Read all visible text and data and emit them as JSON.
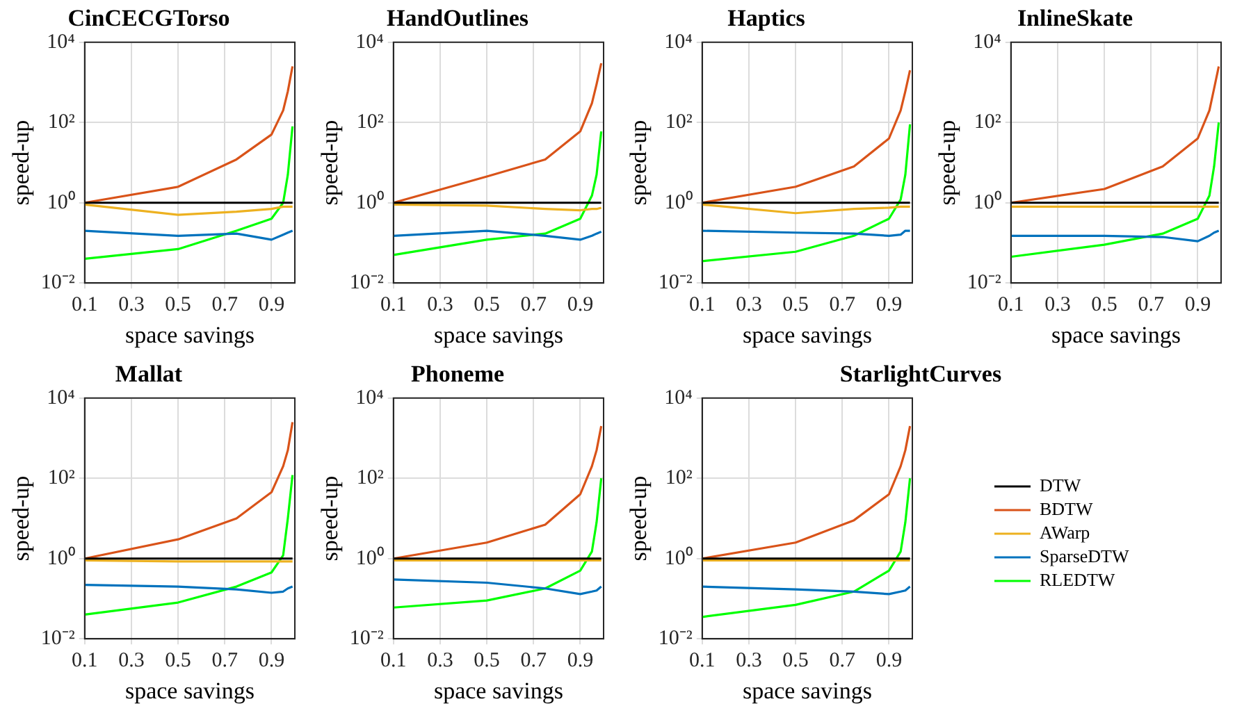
{
  "chart_data": [
    {
      "type": "line",
      "title": "CinCECGTorso",
      "xlabel": "space savings",
      "ylabel": "speed-up",
      "log": true,
      "grid": true,
      "marker": "none",
      "line_style": "solid",
      "x": [
        0.1,
        0.5,
        0.75,
        0.9,
        0.95,
        0.97,
        0.99
      ],
      "xlim": [
        0.1,
        1.0
      ],
      "xticks": [
        0.1,
        0.3,
        0.5,
        0.7,
        0.9
      ],
      "ylim": [
        0.01,
        10000
      ],
      "yticks": [
        {
          "value": 0.01,
          "label": "10⁻²"
        },
        {
          "value": 1,
          "label": "10⁰"
        },
        {
          "value": 100,
          "label": "10²"
        },
        {
          "value": 10000,
          "label": "10⁴"
        }
      ],
      "series": [
        {
          "color": "#000000",
          "values": [
            1,
            1,
            1,
            1,
            1,
            1,
            1
          ]
        },
        {
          "color": "#d95319",
          "values": [
            1,
            2.5,
            12,
            50,
            200,
            600,
            2500
          ]
        },
        {
          "color": "#edb120",
          "values": [
            0.9,
            0.5,
            0.6,
            0.7,
            0.8,
            0.8,
            0.8
          ]
        },
        {
          "color": "#0072bd",
          "values": [
            0.2,
            0.15,
            0.17,
            0.12,
            0.16,
            0.18,
            0.2
          ]
        },
        {
          "color": "#00ff00",
          "values": [
            0.04,
            0.07,
            0.2,
            0.4,
            1,
            5,
            80
          ]
        }
      ]
    },
    {
      "type": "line",
      "title": "HandOutlines",
      "xlabel": "space savings",
      "ylabel": "speed-up",
      "log": true,
      "grid": true,
      "marker": "none",
      "line_style": "solid",
      "x": [
        0.1,
        0.5,
        0.75,
        0.9,
        0.95,
        0.97,
        0.99
      ],
      "xlim": [
        0.1,
        1.0
      ],
      "xticks": [
        0.1,
        0.3,
        0.5,
        0.7,
        0.9
      ],
      "ylim": [
        0.01,
        10000
      ],
      "yticks": [
        {
          "value": 0.01,
          "label": "10⁻²"
        },
        {
          "value": 1,
          "label": "10⁰"
        },
        {
          "value": 100,
          "label": "10²"
        },
        {
          "value": 10000,
          "label": "10⁴"
        }
      ],
      "series": [
        {
          "color": "#000000",
          "values": [
            1,
            1,
            1,
            1,
            1,
            1,
            1
          ]
        },
        {
          "color": "#d95319",
          "values": [
            1,
            4.5,
            12,
            60,
            300,
            900,
            3000
          ]
        },
        {
          "color": "#edb120",
          "values": [
            0.9,
            0.85,
            0.7,
            0.65,
            0.7,
            0.7,
            0.75
          ]
        },
        {
          "color": "#0072bd",
          "values": [
            0.15,
            0.2,
            0.15,
            0.12,
            0.15,
            0.17,
            0.19
          ]
        },
        {
          "color": "#00ff00",
          "values": [
            0.05,
            0.12,
            0.17,
            0.4,
            1.5,
            5,
            60
          ]
        }
      ]
    },
    {
      "type": "line",
      "title": "Haptics",
      "xlabel": "space savings",
      "ylabel": "speed-up",
      "log": true,
      "grid": true,
      "marker": "none",
      "line_style": "solid",
      "x": [
        0.1,
        0.5,
        0.75,
        0.9,
        0.95,
        0.97,
        0.99
      ],
      "xlim": [
        0.1,
        1.0
      ],
      "xticks": [
        0.1,
        0.3,
        0.5,
        0.7,
        0.9
      ],
      "ylim": [
        0.01,
        10000
      ],
      "yticks": [
        {
          "value": 0.01,
          "label": "10⁻²"
        },
        {
          "value": 1,
          "label": "10⁰"
        },
        {
          "value": 100,
          "label": "10²"
        },
        {
          "value": 10000,
          "label": "10⁴"
        }
      ],
      "series": [
        {
          "color": "#000000",
          "values": [
            1,
            1,
            1,
            1,
            1,
            1,
            1
          ]
        },
        {
          "color": "#d95319",
          "values": [
            1,
            2.5,
            8,
            40,
            200,
            600,
            2000
          ]
        },
        {
          "color": "#edb120",
          "values": [
            0.9,
            0.55,
            0.7,
            0.75,
            0.8,
            0.8,
            0.8
          ]
        },
        {
          "color": "#0072bd",
          "values": [
            0.2,
            0.18,
            0.17,
            0.15,
            0.16,
            0.2,
            0.2
          ]
        },
        {
          "color": "#00ff00",
          "values": [
            0.035,
            0.06,
            0.15,
            0.4,
            1.2,
            5,
            90
          ]
        }
      ]
    },
    {
      "type": "line",
      "title": "InlineSkate",
      "xlabel": "space savings",
      "ylabel": "speed-up",
      "log": true,
      "grid": true,
      "marker": "none",
      "line_style": "solid",
      "x": [
        0.1,
        0.5,
        0.75,
        0.9,
        0.95,
        0.97,
        0.99
      ],
      "xlim": [
        0.1,
        1.0
      ],
      "xticks": [
        0.1,
        0.3,
        0.5,
        0.7,
        0.9
      ],
      "ylim": [
        0.01,
        10000
      ],
      "yticks": [
        {
          "value": 0.01,
          "label": "10⁻²"
        },
        {
          "value": 1,
          "label": "10⁰"
        },
        {
          "value": 100,
          "label": "10²"
        },
        {
          "value": 10000,
          "label": "10⁴"
        }
      ],
      "series": [
        {
          "color": "#000000",
          "values": [
            1,
            1,
            1,
            1,
            1,
            1,
            1
          ]
        },
        {
          "color": "#d95319",
          "values": [
            1,
            2.2,
            8,
            40,
            200,
            700,
            2500
          ]
        },
        {
          "color": "#edb120",
          "values": [
            0.8,
            0.8,
            0.8,
            0.8,
            0.8,
            0.8,
            0.8
          ]
        },
        {
          "color": "#0072bd",
          "values": [
            0.15,
            0.15,
            0.14,
            0.11,
            0.15,
            0.18,
            0.2
          ]
        },
        {
          "color": "#00ff00",
          "values": [
            0.045,
            0.09,
            0.17,
            0.4,
            1.5,
            8,
            100
          ]
        }
      ]
    },
    {
      "type": "line",
      "title": "Mallat",
      "xlabel": "space savings",
      "ylabel": "speed-up",
      "log": true,
      "grid": true,
      "marker": "none",
      "line_style": "solid",
      "x": [
        0.1,
        0.5,
        0.75,
        0.9,
        0.95,
        0.97,
        0.99
      ],
      "xlim": [
        0.1,
        1.0
      ],
      "xticks": [
        0.1,
        0.3,
        0.5,
        0.7,
        0.9
      ],
      "ylim": [
        0.01,
        10000
      ],
      "yticks": [
        {
          "value": 0.01,
          "label": "10⁻²"
        },
        {
          "value": 1,
          "label": "10⁰"
        },
        {
          "value": 100,
          "label": "10²"
        },
        {
          "value": 10000,
          "label": "10⁴"
        }
      ],
      "series": [
        {
          "color": "#000000",
          "values": [
            1,
            1,
            1,
            1,
            1,
            1,
            1
          ]
        },
        {
          "color": "#d95319",
          "values": [
            1,
            3,
            10,
            45,
            200,
            500,
            2500
          ]
        },
        {
          "color": "#edb120",
          "values": [
            0.9,
            0.85,
            0.85,
            0.85,
            0.85,
            0.85,
            0.85
          ]
        },
        {
          "color": "#0072bd",
          "values": [
            0.22,
            0.2,
            0.17,
            0.14,
            0.15,
            0.18,
            0.2
          ]
        },
        {
          "color": "#00ff00",
          "values": [
            0.04,
            0.08,
            0.2,
            0.45,
            1.2,
            10,
            120
          ]
        }
      ]
    },
    {
      "type": "line",
      "title": "Phoneme",
      "xlabel": "space savings",
      "ylabel": "speed-up",
      "log": true,
      "grid": true,
      "marker": "none",
      "line_style": "solid",
      "x": [
        0.1,
        0.5,
        0.75,
        0.9,
        0.95,
        0.97,
        0.99
      ],
      "xlim": [
        0.1,
        1.0
      ],
      "xticks": [
        0.1,
        0.3,
        0.5,
        0.7,
        0.9
      ],
      "ylim": [
        0.01,
        10000
      ],
      "yticks": [
        {
          "value": 0.01,
          "label": "10⁻²"
        },
        {
          "value": 1,
          "label": "10⁰"
        },
        {
          "value": 100,
          "label": "10²"
        },
        {
          "value": 10000,
          "label": "10⁴"
        }
      ],
      "series": [
        {
          "color": "#000000",
          "values": [
            1,
            1,
            1,
            1,
            1,
            1,
            1
          ]
        },
        {
          "color": "#d95319",
          "values": [
            1,
            2.5,
            7,
            40,
            200,
            500,
            2000
          ]
        },
        {
          "color": "#edb120",
          "values": [
            0.9,
            0.9,
            0.9,
            0.9,
            0.9,
            0.9,
            0.9
          ]
        },
        {
          "color": "#0072bd",
          "values": [
            0.3,
            0.25,
            0.18,
            0.13,
            0.15,
            0.16,
            0.2
          ]
        },
        {
          "color": "#00ff00",
          "values": [
            0.06,
            0.09,
            0.18,
            0.5,
            1.5,
            8,
            100
          ]
        }
      ]
    },
    {
      "type": "line",
      "title": "StarlightCurves",
      "xlabel": "space savings",
      "ylabel": "speed-up",
      "log": true,
      "grid": true,
      "marker": "none",
      "line_style": "solid",
      "legend": "right",
      "x": [
        0.1,
        0.5,
        0.75,
        0.9,
        0.95,
        0.97,
        0.99
      ],
      "xlim": [
        0.1,
        1.0
      ],
      "xticks": [
        0.1,
        0.3,
        0.5,
        0.7,
        0.9
      ],
      "ylim": [
        0.01,
        10000
      ],
      "yticks": [
        {
          "value": 0.01,
          "label": "10⁻²"
        },
        {
          "value": 1,
          "label": "10⁰"
        },
        {
          "value": 100,
          "label": "10²"
        },
        {
          "value": 10000,
          "label": "10⁴"
        }
      ],
      "series": [
        {
          "name": "DTW",
          "color": "#000000",
          "values": [
            1,
            1,
            1,
            1,
            1,
            1,
            1
          ]
        },
        {
          "name": "BDTW",
          "color": "#d95319",
          "values": [
            1,
            2.5,
            9,
            40,
            200,
            500,
            2000
          ]
        },
        {
          "name": "AWarp",
          "color": "#edb120",
          "values": [
            0.9,
            0.9,
            0.9,
            0.9,
            0.9,
            0.9,
            0.9
          ]
        },
        {
          "name": "SparseDTW",
          "color": "#0072bd",
          "values": [
            0.2,
            0.17,
            0.15,
            0.13,
            0.15,
            0.16,
            0.2
          ]
        },
        {
          "name": "RLEDTW",
          "color": "#00ff00",
          "values": [
            0.035,
            0.07,
            0.15,
            0.5,
            1.5,
            8,
            100
          ]
        }
      ]
    }
  ]
}
